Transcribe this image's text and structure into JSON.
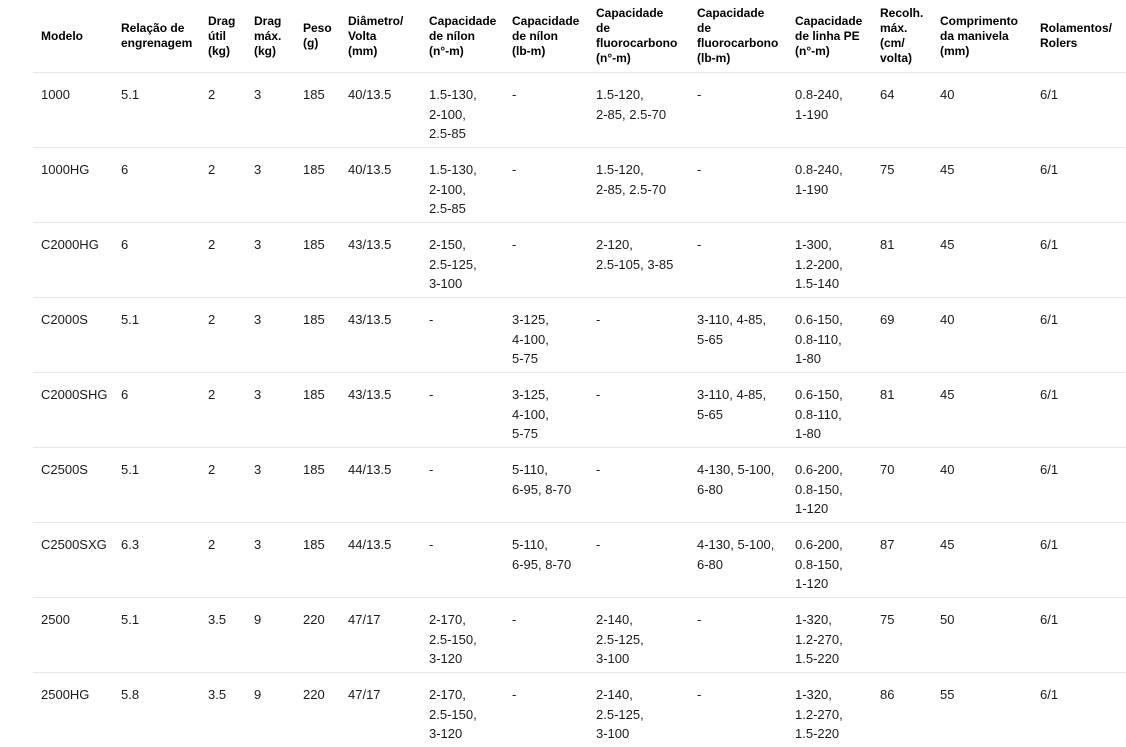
{
  "table": {
    "columns": [
      {
        "key": "modelo",
        "label": "Modelo"
      },
      {
        "key": "gear-ratio",
        "label": "Relação de\nengrenagem"
      },
      {
        "key": "drag-util",
        "label": "Drag\nútil\n(kg)"
      },
      {
        "key": "drag-max",
        "label": "Drag\nmáx.\n(kg)"
      },
      {
        "key": "peso",
        "label": "Peso\n(g)"
      },
      {
        "key": "diametro-volta",
        "label": "Diâmetro/\nVolta\n(mm)"
      },
      {
        "key": "nylon-no-m",
        "label": "Capacidade\nde nílon\n(n°-m)"
      },
      {
        "key": "nylon-lb-m",
        "label": "Capacidade\nde nílon\n(lb-m)"
      },
      {
        "key": "fluoro-no-m",
        "label": "Capacidade\nde\nfluorocarbono\n(n°-m)"
      },
      {
        "key": "fluoro-lb-m",
        "label": "Capacidade\nde\nfluorocarbono\n(lb-m)"
      },
      {
        "key": "linha-pe",
        "label": "Capacidade\nde linha PE\n(n°-m)"
      },
      {
        "key": "recolhimento",
        "label": "Recolh.\nmáx.\n(cm/\nvolta)"
      },
      {
        "key": "manivela",
        "label": "Comprimento\nda manivela\n(mm)"
      },
      {
        "key": "rolamentos",
        "label": "Rolamentos/\nRolers"
      }
    ],
    "rows": [
      [
        "1000",
        "5.1",
        "2",
        "3",
        "185",
        "40/13.5",
        "1.5-130,\n2-100,\n2.5-85",
        "-",
        "1.5-120,\n2-85, 2.5-70",
        "-",
        "0.8-240,\n1-190",
        "64",
        "40",
        "6/1"
      ],
      [
        "1000HG",
        "6",
        "2",
        "3",
        "185",
        "40/13.5",
        "1.5-130,\n2-100,\n2.5-85",
        "-",
        "1.5-120,\n2-85, 2.5-70",
        "-",
        "0.8-240,\n1-190",
        "75",
        "45",
        "6/1"
      ],
      [
        "C2000HG",
        "6",
        "2",
        "3",
        "185",
        "43/13.5",
        "2-150,\n2.5-125,\n3-100",
        "-",
        "2-120,\n2.5-105, 3-85",
        "-",
        "1-300,\n1.2-200,\n1.5-140",
        "81",
        "45",
        "6/1"
      ],
      [
        "C2000S",
        "5.1",
        "2",
        "3",
        "185",
        "43/13.5",
        "-",
        "3-125,\n4-100,\n5-75",
        "-",
        "3-110, 4-85,\n5-65",
        "0.6-150,\n0.8-110,\n1-80",
        "69",
        "40",
        "6/1"
      ],
      [
        "C2000SHG",
        "6",
        "2",
        "3",
        "185",
        "43/13.5",
        "-",
        "3-125,\n4-100,\n5-75",
        "-",
        "3-110, 4-85,\n5-65",
        "0.6-150,\n0.8-110,\n1-80",
        "81",
        "45",
        "6/1"
      ],
      [
        "C2500S",
        "5.1",
        "2",
        "3",
        "185",
        "44/13.5",
        "-",
        "5-110,\n6-95, 8-70",
        "-",
        "4-130, 5-100,\n6-80",
        "0.6-200,\n0.8-150,\n1-120",
        "70",
        "40",
        "6/1"
      ],
      [
        "C2500SXG",
        "6.3",
        "2",
        "3",
        "185",
        "44/13.5",
        "-",
        "5-110,\n6-95, 8-70",
        "-",
        "4-130, 5-100,\n6-80",
        "0.6-200,\n0.8-150,\n1-120",
        "87",
        "45",
        "6/1"
      ],
      [
        "2500",
        "5.1",
        "3.5",
        "9",
        "220",
        "47/17",
        "2-170,\n2.5-150,\n3-120",
        "-",
        "2-140,\n2.5-125,\n3-100",
        "-",
        "1-320,\n1.2-270,\n1.5-220",
        "75",
        "50",
        "6/1"
      ],
      [
        "2500HG",
        "5.8",
        "3.5",
        "9",
        "220",
        "47/17",
        "2-170,\n2.5-150,\n3-120",
        "-",
        "2-140,\n2.5-125,\n3-100",
        "-",
        "1-320,\n1.2-270,\n1.5-220",
        "86",
        "55",
        "6/1"
      ]
    ]
  }
}
